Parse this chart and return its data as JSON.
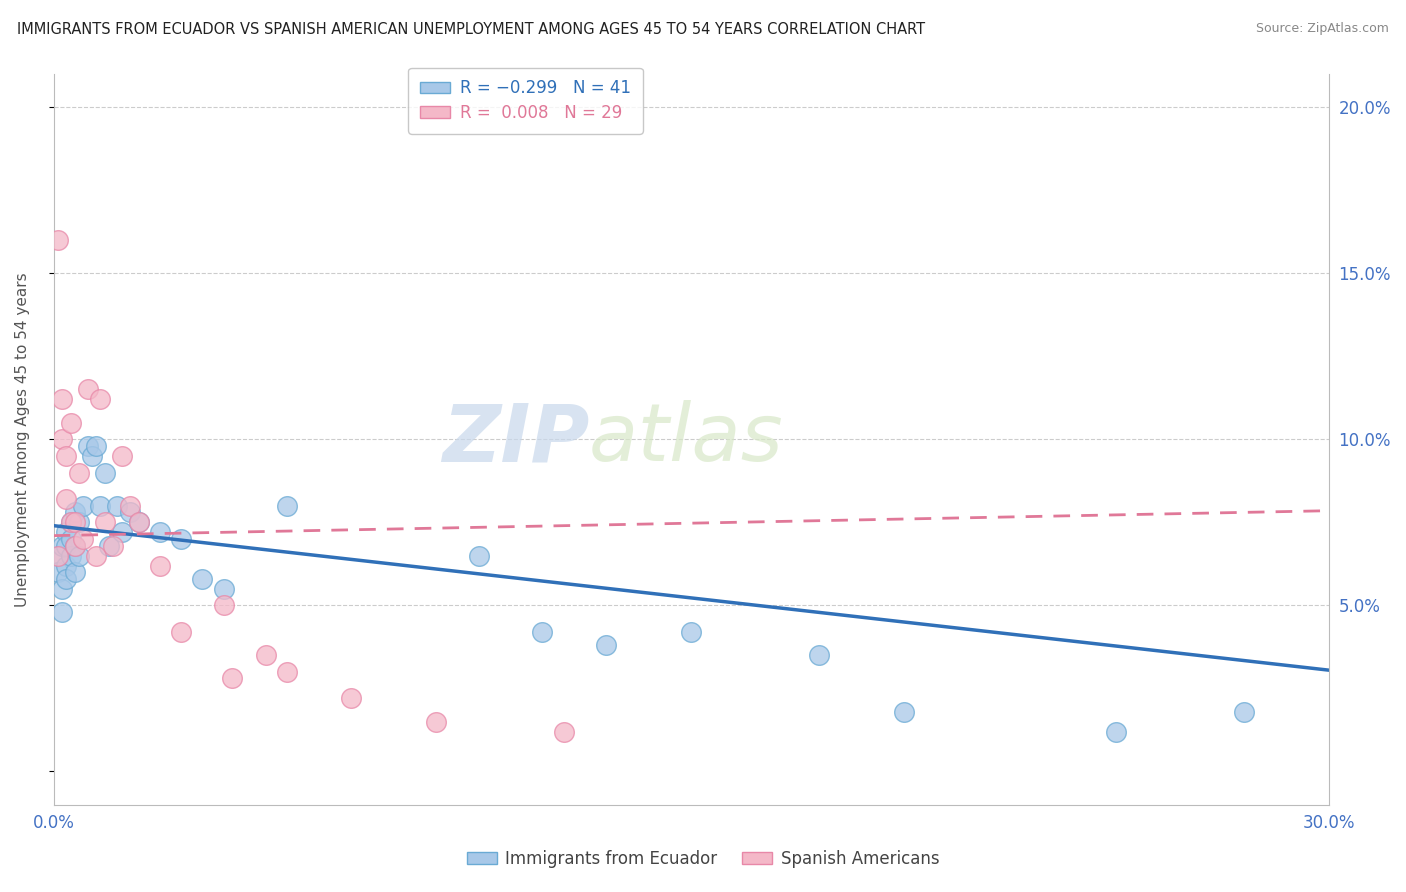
{
  "title": "IMMIGRANTS FROM ECUADOR VS SPANISH AMERICAN UNEMPLOYMENT AMONG AGES 45 TO 54 YEARS CORRELATION CHART",
  "source": "Source: ZipAtlas.com",
  "ylabel": "Unemployment Among Ages 45 to 54 years",
  "xlabel": "",
  "xlim": [
    0.0,
    0.3
  ],
  "ylim": [
    -0.01,
    0.21
  ],
  "xticks": [
    0.0,
    0.05,
    0.1,
    0.15,
    0.2,
    0.25,
    0.3
  ],
  "yticks": [
    0.0,
    0.05,
    0.1,
    0.15,
    0.2
  ],
  "right_ytick_labels": [
    "",
    "5.0%",
    "10.0%",
    "15.0%",
    "20.0%"
  ],
  "legend_label1": "R = -0.299   N = 41",
  "legend_label2": "R =  0.008   N = 29",
  "blue_color": "#a8c8e8",
  "pink_color": "#f4b8c8",
  "blue_edge_color": "#6aaad4",
  "pink_edge_color": "#e888a8",
  "blue_line_color": "#3070b8",
  "pink_line_color": "#e07898",
  "watermark_zip": "ZIP",
  "watermark_atlas": "atlas",
  "blue_x": [
    0.001,
    0.001,
    0.002,
    0.002,
    0.002,
    0.003,
    0.003,
    0.003,
    0.003,
    0.004,
    0.004,
    0.004,
    0.005,
    0.005,
    0.005,
    0.006,
    0.006,
    0.007,
    0.008,
    0.009,
    0.01,
    0.011,
    0.012,
    0.013,
    0.015,
    0.016,
    0.018,
    0.02,
    0.025,
    0.03,
    0.035,
    0.04,
    0.055,
    0.1,
    0.115,
    0.13,
    0.15,
    0.18,
    0.2,
    0.25,
    0.28
  ],
  "blue_y": [
    0.065,
    0.06,
    0.068,
    0.055,
    0.048,
    0.072,
    0.068,
    0.062,
    0.058,
    0.075,
    0.07,
    0.065,
    0.078,
    0.068,
    0.06,
    0.075,
    0.065,
    0.08,
    0.098,
    0.095,
    0.098,
    0.08,
    0.09,
    0.068,
    0.08,
    0.072,
    0.078,
    0.075,
    0.072,
    0.07,
    0.058,
    0.055,
    0.08,
    0.065,
    0.042,
    0.038,
    0.042,
    0.035,
    0.018,
    0.012,
    0.018
  ],
  "pink_x": [
    0.001,
    0.001,
    0.002,
    0.002,
    0.003,
    0.003,
    0.004,
    0.004,
    0.005,
    0.005,
    0.006,
    0.007,
    0.008,
    0.01,
    0.011,
    0.012,
    0.014,
    0.016,
    0.018,
    0.02,
    0.025,
    0.03,
    0.04,
    0.042,
    0.05,
    0.055,
    0.07,
    0.09,
    0.12
  ],
  "pink_y": [
    0.16,
    0.065,
    0.112,
    0.1,
    0.095,
    0.082,
    0.105,
    0.075,
    0.075,
    0.068,
    0.09,
    0.07,
    0.115,
    0.065,
    0.112,
    0.075,
    0.068,
    0.095,
    0.08,
    0.075,
    0.062,
    0.042,
    0.05,
    0.028,
    0.035,
    0.03,
    0.022,
    0.015,
    0.012
  ],
  "blue_intercept": 0.074,
  "blue_slope": -0.145,
  "pink_intercept": 0.071,
  "pink_slope": 0.025
}
